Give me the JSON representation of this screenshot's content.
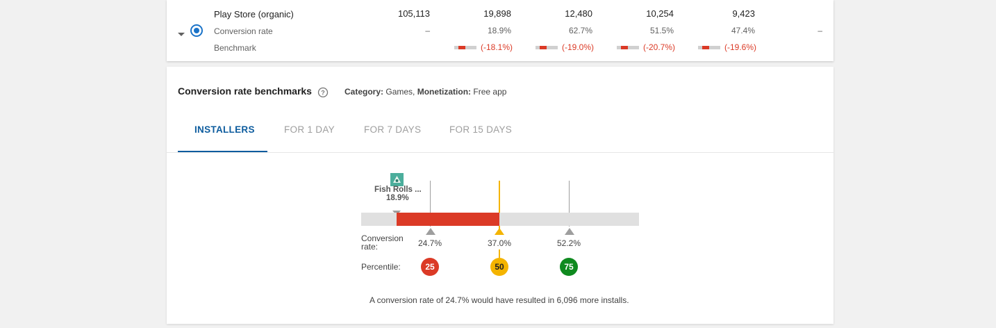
{
  "top_table": {
    "source_label": "Play Store (organic)",
    "conversion_label": "Conversion rate",
    "benchmark_label": "Benchmark",
    "row1": [
      "105,113",
      "19,898",
      "12,480",
      "10,254",
      "9,423"
    ],
    "row2": [
      "–",
      "18.9%",
      "62.7%",
      "51.5%",
      "47.4%",
      "–"
    ],
    "row3": [
      "(-18.1%)",
      "(-19.0%)",
      "(-20.7%)",
      "(-19.6%)"
    ]
  },
  "benchmarks": {
    "title": "Conversion rate benchmarks",
    "category_key": "Category:",
    "category_value": "Games,",
    "monetization_key": "Monetization:",
    "monetization_value": "Free app",
    "tabs": [
      {
        "label": "INSTALLERS",
        "active": true
      },
      {
        "label": "FOR 1 DAY",
        "active": false
      },
      {
        "label": "FOR 7 DAYS",
        "active": false
      },
      {
        "label": "FOR 15 DAYS",
        "active": false
      }
    ],
    "app_name": "Fish Rolls ...",
    "app_rate": "18.9%",
    "conversion_rate_label": "Conversion rate:",
    "percentile_label": "Percentile:",
    "markers": [
      {
        "value": "24.7%",
        "percentile": "25",
        "color": "#db3a26"
      },
      {
        "value": "37.0%",
        "percentile": "50",
        "color": "#f4b400"
      },
      {
        "value": "52.2%",
        "percentile": "75",
        "color": "#0f8a1f"
      }
    ],
    "summary": "A conversion rate of 24.7% would have resulted in 6,096 more installs."
  }
}
